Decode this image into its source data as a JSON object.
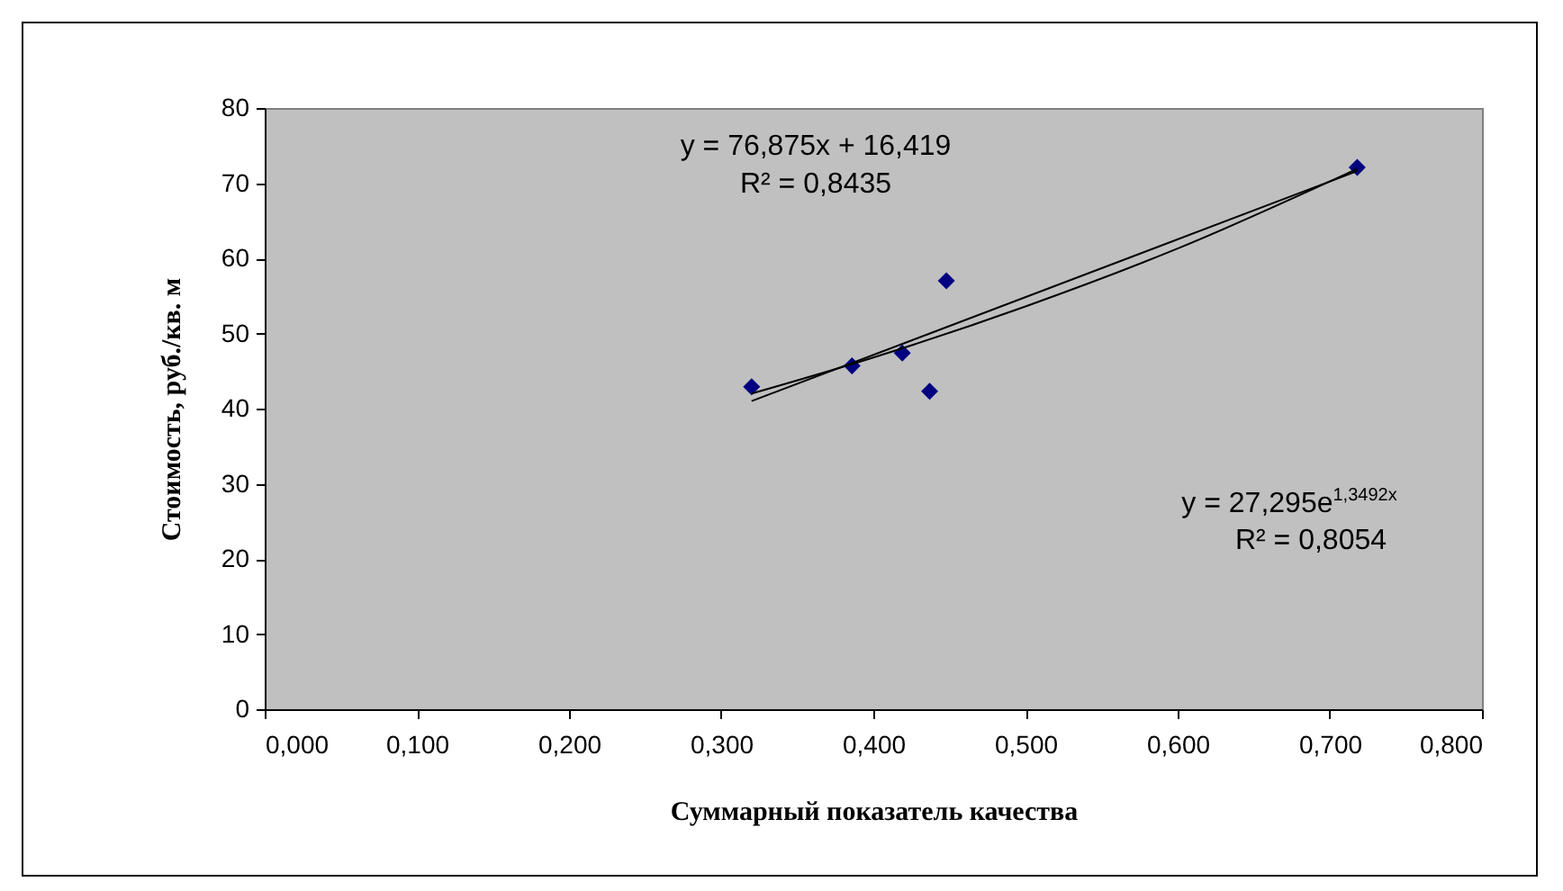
{
  "chart_data": {
    "type": "scatter",
    "xlabel": "Суммарный показатель качества",
    "ylabel": "Стоимость, руб./кв. м",
    "x": [
      0.32,
      0.386,
      0.419,
      0.448,
      0.437,
      0.718
    ],
    "series": [
      {
        "color": "#000080",
        "marker": "diamond",
        "values": [
          42.9,
          45.7,
          47.4,
          57.0,
          42.3,
          72.1
        ]
      },
      {
        "type": "line",
        "color": "#000000",
        "marker": "none",
        "x": [
          0.32,
          0.718
        ],
        "values": [
          41.0,
          71.6
        ]
      },
      {
        "type": "line",
        "color": "#000000",
        "marker": "none",
        "x": [
          0.32,
          0.4,
          0.5,
          0.6,
          0.718
        ],
        "values": [
          42.0,
          46.8,
          53.6,
          61.3,
          71.9
        ]
      }
    ],
    "xlim": [
      0,
      0.8
    ],
    "ylim": [
      0,
      80
    ],
    "xticks": [
      {
        "value": 0,
        "label": "0,000"
      },
      {
        "value": 0.1,
        "label": "0,100"
      },
      {
        "value": 0.2,
        "label": "0,200"
      },
      {
        "value": 0.3,
        "label": "0,300"
      },
      {
        "value": 0.4,
        "label": "0,400"
      },
      {
        "value": 0.5,
        "label": "0,500"
      },
      {
        "value": 0.6,
        "label": "0,600"
      },
      {
        "value": 0.7,
        "label": "0,700"
      },
      {
        "value": 0.8,
        "label": "0,800"
      }
    ],
    "yticks": [
      0,
      10,
      20,
      30,
      40,
      50,
      60,
      70,
      80
    ],
    "annotations": [
      "y = 76,875x + 16,419",
      "R² = 0,8435",
      "y = 27,295e$^{1,3492x}$",
      "R² = 0,8054"
    ],
    "grid": false,
    "line_style": "solid"
  }
}
